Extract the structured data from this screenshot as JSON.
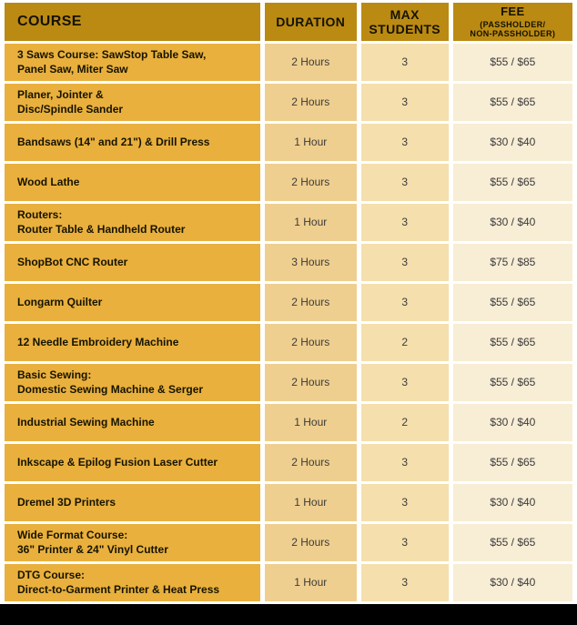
{
  "colors": {
    "header_bg": "#BB8A13",
    "course_cell_bg": "#E9B03D",
    "duration_cell_bg": "#EFCF8F",
    "max_students_cell_bg": "#F4DFAD",
    "fee_cell_bg": "#F8EDD5",
    "header_text": "#141200",
    "course_text": "#161300",
    "data_text": "#3B3B3B",
    "bottom_bar": "#000000",
    "page_bg": "#FFFFFF"
  },
  "table": {
    "headers": {
      "course": "COURSE",
      "duration": "DURATION",
      "max_students": "MAX\nSTUDENTS",
      "fee_title": "FEE",
      "fee_sub": "(PASSHOLDER/\nNON-PASSHOLDER)"
    },
    "rows": [
      {
        "course": "3 Saws Course: SawStop Table Saw,\nPanel Saw, Miter Saw",
        "duration": "2 Hours",
        "max_students": "3",
        "fee": "$55 / $65"
      },
      {
        "course": "Planer, Jointer &\nDisc/Spindle Sander",
        "duration": "2 Hours",
        "max_students": "3",
        "fee": "$55 / $65"
      },
      {
        "course": "Bandsaws (14\" and 21\") & Drill Press",
        "duration": "1 Hour",
        "max_students": "3",
        "fee": "$30 / $40"
      },
      {
        "course": "Wood Lathe",
        "duration": "2 Hours",
        "max_students": "3",
        "fee": "$55 / $65"
      },
      {
        "course": "Routers:\nRouter Table & Handheld Router",
        "duration": "1 Hour",
        "max_students": "3",
        "fee": "$30 / $40"
      },
      {
        "course": "ShopBot CNC Router",
        "duration": "3 Hours",
        "max_students": "3",
        "fee": "$75 / $85"
      },
      {
        "course": "Longarm Quilter",
        "duration": "2 Hours",
        "max_students": "3",
        "fee": "$55 / $65"
      },
      {
        "course": "12 Needle Embroidery Machine",
        "duration": "2 Hours",
        "max_students": "2",
        "fee": "$55 / $65"
      },
      {
        "course": "Basic Sewing:\nDomestic Sewing Machine & Serger",
        "duration": "2 Hours",
        "max_students": "3",
        "fee": "$55 / $65"
      },
      {
        "course": "Industrial Sewing Machine",
        "duration": "1 Hour",
        "max_students": "2",
        "fee": "$30 / $40"
      },
      {
        "course": "Inkscape & Epilog Fusion Laser Cutter",
        "duration": "2 Hours",
        "max_students": "3",
        "fee": "$55 / $65"
      },
      {
        "course": "Dremel 3D Printers",
        "duration": "1 Hour",
        "max_students": "3",
        "fee": "$30 / $40"
      },
      {
        "course": "Wide Format Course:\n36\" Printer & 24\" Vinyl Cutter",
        "duration": "2 Hours",
        "max_students": "3",
        "fee": "$55 / $65"
      },
      {
        "course": "DTG Course:\nDirect-to-Garment Printer & Heat Press",
        "duration": "1 Hour",
        "max_students": "3",
        "fee": "$30 / $40"
      }
    ]
  }
}
